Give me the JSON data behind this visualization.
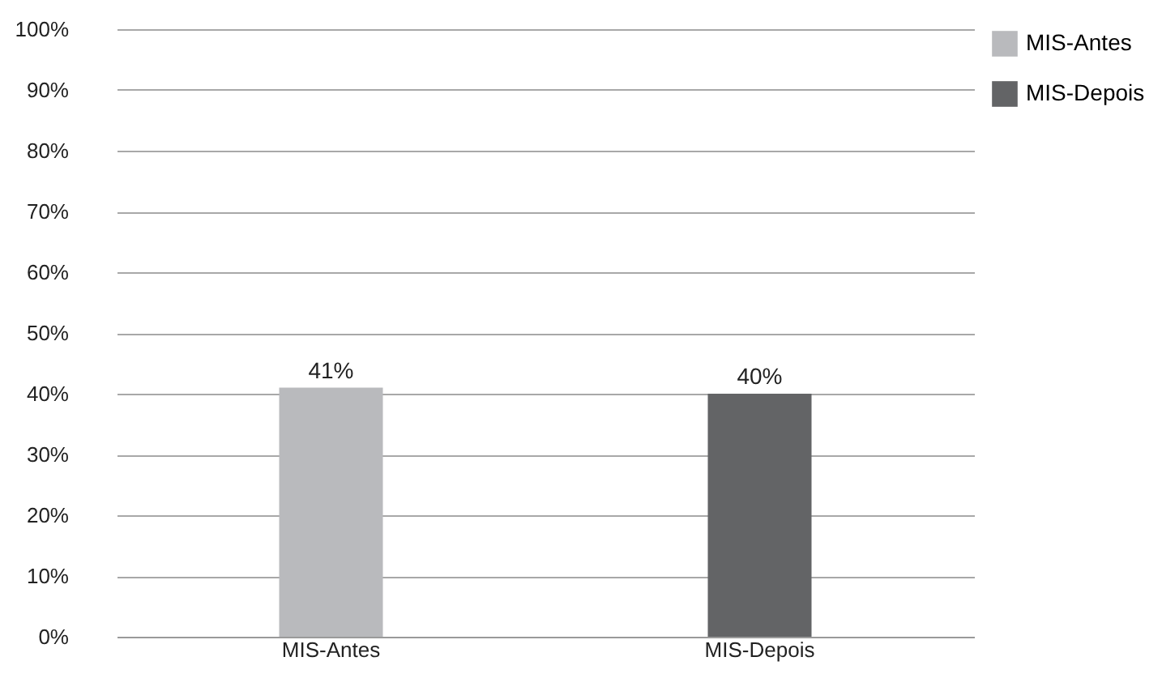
{
  "chart_data": {
    "type": "bar",
    "categories": [
      "MIS-Antes",
      "MIS-Depois"
    ],
    "series": [
      {
        "name": "MIS-Antes",
        "color": "#b9babd",
        "values": [
          41,
          null
        ]
      },
      {
        "name": "MIS-Depois",
        "color": "#636466",
        "values": [
          null,
          40
        ]
      }
    ],
    "ylim": [
      0,
      100
    ],
    "yticks": [
      {
        "value": 0,
        "label": "0%"
      },
      {
        "value": 10,
        "label": "10%"
      },
      {
        "value": 20,
        "label": "20%"
      },
      {
        "value": 30,
        "label": "30%"
      },
      {
        "value": 40,
        "label": "40%"
      },
      {
        "value": 50,
        "label": "50%"
      },
      {
        "value": 60,
        "label": "60%"
      },
      {
        "value": 70,
        "label": "70%"
      },
      {
        "value": 80,
        "label": "80%"
      },
      {
        "value": 90,
        "label": "90%"
      },
      {
        "value": 100,
        "label": "100%"
      }
    ],
    "value_labels": [
      "41%",
      "40%"
    ],
    "grid": "y",
    "legend": "right"
  }
}
